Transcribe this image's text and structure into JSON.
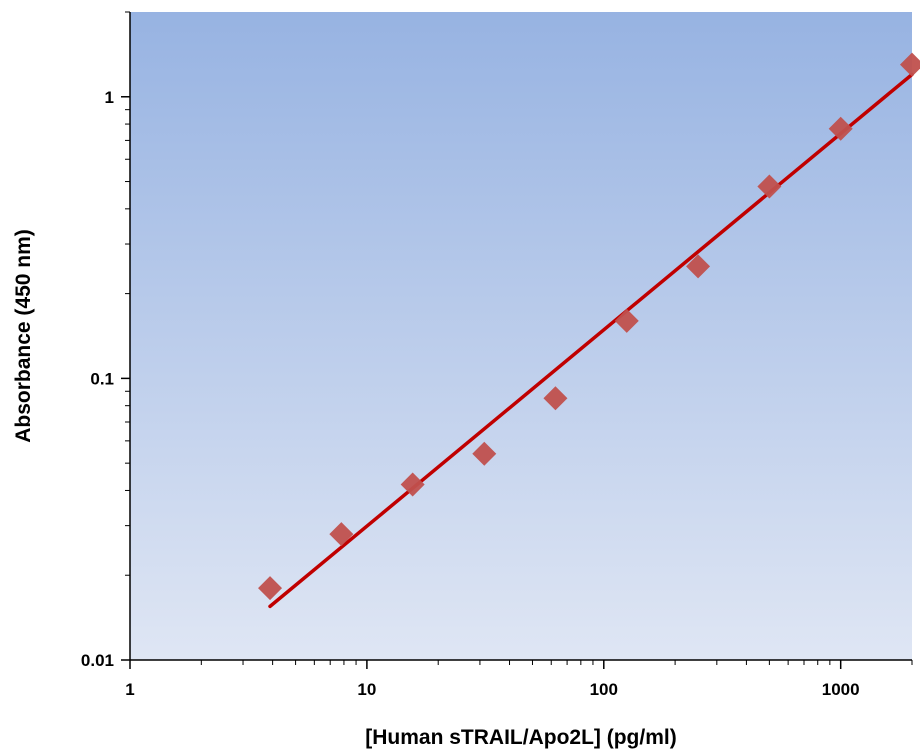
{
  "chart_data": {
    "type": "scatter",
    "title": "",
    "xlabel": "[Human sTRAIL/Apo2L] (pg/ml)",
    "ylabel": "Absorbance (450 nm)",
    "xscale": "log",
    "yscale": "log",
    "xlim": [
      1,
      2000
    ],
    "ylim": [
      0.01,
      2
    ],
    "x_ticks": [
      1,
      10,
      100,
      1000
    ],
    "x_tick_labels": [
      "1",
      "10",
      "100",
      "1000"
    ],
    "y_ticks": [
      0.01,
      0.1,
      1
    ],
    "y_tick_labels": [
      "0.01",
      "0.1",
      "1"
    ],
    "grid": false,
    "legend": "none",
    "series": [
      {
        "marker": "diamond",
        "color": "#c0504d",
        "x": [
          3.9,
          7.8,
          15.6,
          31.3,
          62.5,
          125,
          250,
          500,
          1000,
          2000
        ],
        "y": [
          0.018,
          0.028,
          0.042,
          0.054,
          0.085,
          0.16,
          0.25,
          0.48,
          0.77,
          1.3
        ]
      }
    ],
    "fit_line": {
      "color": "#c00000",
      "x": [
        3.9,
        2000
      ],
      "y": [
        0.0155,
        1.2
      ]
    },
    "background": {
      "top": "#97b3e2",
      "bottom": "#dfe6f4"
    }
  }
}
